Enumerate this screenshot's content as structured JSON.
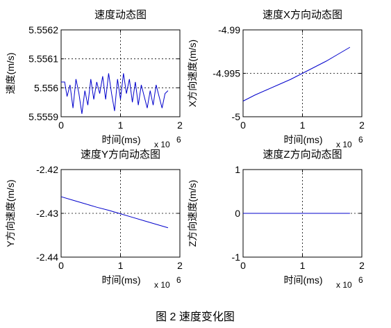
{
  "figure": {
    "caption": "图 2  速度变化图"
  },
  "chart_data": [
    {
      "type": "line",
      "title": "速度动态图",
      "xlabel": "时间(ms)",
      "ylabel": "速度(m/s)",
      "x_multiplier": "x 10",
      "x_multiplier_exp": "6",
      "xlim": [
        0,
        2
      ],
      "ylim": [
        5.5559,
        5.5562
      ],
      "xticks": [
        "0",
        "1",
        "2"
      ],
      "yticks": [
        "5.5559",
        "5.556",
        "5.5561",
        "5.5562"
      ],
      "yticks_values": [
        5.5559,
        5.556,
        5.5561,
        5.5562
      ],
      "grid": true,
      "series": [
        {
          "color": "#0000cc",
          "x": [
            0,
            0.06,
            0.1,
            0.15,
            0.2,
            0.25,
            0.3,
            0.35,
            0.4,
            0.45,
            0.5,
            0.55,
            0.6,
            0.65,
            0.7,
            0.75,
            0.8,
            0.85,
            0.9,
            0.95,
            1.0,
            1.05,
            1.1,
            1.15,
            1.2,
            1.25,
            1.3,
            1.35,
            1.4,
            1.45,
            1.5,
            1.55,
            1.6,
            1.65,
            1.7,
            1.75,
            1.8
          ],
          "y": [
            5.55602,
            5.55602,
            5.55597,
            5.55601,
            5.55593,
            5.55603,
            5.55598,
            5.55591,
            5.55599,
            5.55594,
            5.55603,
            5.55596,
            5.55602,
            5.55598,
            5.55604,
            5.55596,
            5.55605,
            5.55598,
            5.55592,
            5.55603,
            5.55596,
            5.55605,
            5.55598,
            5.55603,
            5.55595,
            5.55602,
            5.55594,
            5.55601,
            5.55597,
            5.55593,
            5.55599,
            5.55594,
            5.55601,
            5.55597,
            5.55593,
            5.55598,
            5.55599
          ]
        }
      ]
    },
    {
      "type": "line",
      "title": "速度X方向动态图",
      "xlabel": "时间(ms)",
      "ylabel": "X方向速度(m/s)",
      "x_multiplier": "x 10",
      "x_multiplier_exp": "6",
      "xlim": [
        0,
        2
      ],
      "ylim": [
        -5,
        -4.99
      ],
      "xticks": [
        "0",
        "1",
        "2"
      ],
      "yticks": [
        "-5",
        "-4.995",
        "-4.99"
      ],
      "yticks_values": [
        -5,
        -4.995,
        -4.99
      ],
      "grid": true,
      "series": [
        {
          "color": "#0000cc",
          "x": [
            0,
            0.2,
            0.4,
            0.6,
            0.8,
            1.0,
            1.2,
            1.4,
            1.6,
            1.8
          ],
          "y": [
            -4.9982,
            -4.9975,
            -4.9969,
            -4.9963,
            -4.9957,
            -4.995,
            -4.9943,
            -4.9936,
            -4.9928,
            -4.992
          ]
        }
      ]
    },
    {
      "type": "line",
      "title": "速度Y方向动态图",
      "xlabel": "时间(ms)",
      "ylabel": "Y方向速度(m/s)",
      "x_multiplier": "x 10",
      "x_multiplier_exp": "6",
      "xlim": [
        0,
        2
      ],
      "ylim": [
        -2.44,
        -2.42
      ],
      "xticks": [
        "0",
        "1",
        "2"
      ],
      "yticks": [
        "-2.44",
        "-2.43",
        "-2.42"
      ],
      "yticks_values": [
        -2.44,
        -2.43,
        -2.42
      ],
      "grid": true,
      "series": [
        {
          "color": "#0000cc",
          "x": [
            0,
            0.2,
            0.4,
            0.6,
            0.8,
            1.0,
            1.2,
            1.4,
            1.6,
            1.8
          ],
          "y": [
            -2.4262,
            -2.427,
            -2.4278,
            -2.4286,
            -2.4293,
            -2.4301,
            -2.4309,
            -2.4317,
            -2.4325,
            -2.4333
          ]
        }
      ]
    },
    {
      "type": "line",
      "title": "速度Z方向动态图",
      "xlabel": "时间(ms)",
      "ylabel": "Z方向速度(m/s)",
      "x_multiplier": "x 10",
      "x_multiplier_exp": "6",
      "xlim": [
        0,
        2
      ],
      "ylim": [
        -1,
        1
      ],
      "xticks": [
        "0",
        "1",
        "2"
      ],
      "yticks": [
        "-1",
        "0",
        "1"
      ],
      "yticks_values": [
        -1,
        0,
        1
      ],
      "grid": true,
      "series": [
        {
          "color": "#0000cc",
          "x": [
            0,
            1.8
          ],
          "y": [
            0,
            0
          ]
        }
      ]
    }
  ]
}
